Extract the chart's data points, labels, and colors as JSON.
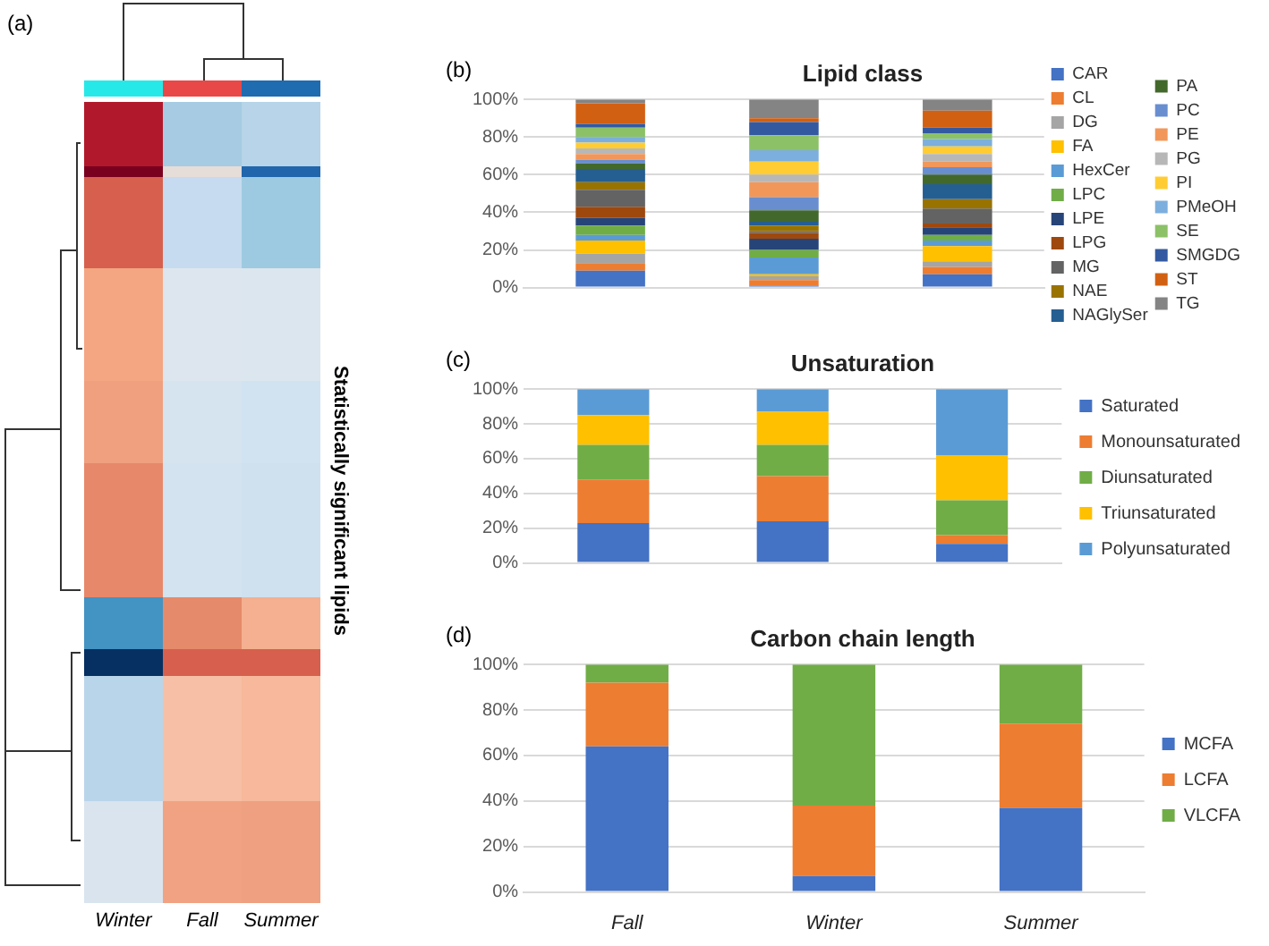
{
  "chart_data": [
    {
      "type": "other",
      "categories": [
        "Winter",
        "Fall",
        "Summer"
      ],
      "ylabel": "Statistically significant lipids",
      "annotations": [
        "(a)"
      ]
    },
    {
      "type": "bar",
      "title": "Lipid class",
      "annotations": [
        "(b)"
      ],
      "stacked": true,
      "categories": [
        null,
        null,
        null
      ],
      "ylim": [
        0,
        100
      ],
      "yticks": [
        {
          "value": 0,
          "label": "0%"
        },
        {
          "value": 20,
          "label": "20%"
        },
        {
          "value": 40,
          "label": "40%"
        },
        {
          "value": 60,
          "label": "60%"
        },
        {
          "value": 80,
          "label": "80%"
        },
        {
          "value": 100,
          "label": "100%"
        }
      ],
      "grid": "y",
      "legend": "right",
      "series": [
        {
          "name": "CAR",
          "color": "#4472c4",
          "values": [
            9,
            1,
            7
          ]
        },
        {
          "name": "CL",
          "color": "#ed7d31",
          "values": [
            4,
            3,
            4
          ]
        },
        {
          "name": "DG",
          "color": "#a5a5a5",
          "values": [
            5,
            2,
            3
          ]
        },
        {
          "name": "FA",
          "color": "#ffc000",
          "values": [
            7,
            1,
            8
          ]
        },
        {
          "name": "HexCer",
          "color": "#5b9bd5",
          "values": [
            3,
            9,
            3
          ]
        },
        {
          "name": "LPC",
          "color": "#70ad47",
          "values": [
            5,
            4,
            3
          ]
        },
        {
          "name": "LPE",
          "color": "#264478",
          "values": [
            4,
            6,
            4
          ]
        },
        {
          "name": "LPG",
          "color": "#9e480e",
          "values": [
            6,
            3,
            2
          ]
        },
        {
          "name": "MG",
          "color": "#636363",
          "values": [
            9,
            1,
            8
          ]
        },
        {
          "name": "NAE",
          "color": "#997300",
          "values": [
            4,
            3,
            5
          ]
        },
        {
          "name": "NAGlySer",
          "color": "#255e91",
          "values": [
            7,
            2,
            8
          ]
        },
        {
          "name": "PA",
          "color": "#43682b",
          "values": [
            3,
            6,
            5
          ]
        },
        {
          "name": "PC",
          "color": "#698ed0",
          "values": [
            2,
            7,
            4
          ]
        },
        {
          "name": "PE",
          "color": "#f1975a",
          "values": [
            3,
            8,
            3
          ]
        },
        {
          "name": "PG",
          "color": "#b7b7b7",
          "values": [
            3,
            4,
            4
          ]
        },
        {
          "name": "PI",
          "color": "#ffcd33",
          "values": [
            3,
            7,
            4
          ]
        },
        {
          "name": "PMeOH",
          "color": "#7cafdd",
          "values": [
            3,
            6,
            4
          ]
        },
        {
          "name": "SE",
          "color": "#8cc168",
          "values": [
            5,
            8,
            3
          ]
        },
        {
          "name": "SMGDG",
          "color": "#335aa1",
          "values": [
            2,
            7,
            3
          ]
        },
        {
          "name": "ST",
          "color": "#d26012",
          "values": [
            11,
            2,
            9
          ]
        },
        {
          "name": "TG",
          "color": "#848484",
          "values": [
            2,
            10,
            6
          ]
        }
      ]
    },
    {
      "type": "bar",
      "title": "Unsaturation",
      "annotations": [
        "(c)"
      ],
      "stacked": true,
      "categories": [
        null,
        null,
        null
      ],
      "ylim": [
        0,
        100
      ],
      "yticks": [
        {
          "value": 0,
          "label": "0%"
        },
        {
          "value": 20,
          "label": "20%"
        },
        {
          "value": 40,
          "label": "40%"
        },
        {
          "value": 60,
          "label": "60%"
        },
        {
          "value": 80,
          "label": "80%"
        },
        {
          "value": 100,
          "label": "100%"
        }
      ],
      "grid": "y",
      "legend": "right",
      "series": [
        {
          "name": "Saturated",
          "color": "#4472c4",
          "values": [
            23,
            24,
            11
          ]
        },
        {
          "name": "Monounsaturated",
          "color": "#ed7d31",
          "values": [
            25,
            26,
            5
          ]
        },
        {
          "name": "Diunsaturated",
          "color": "#70ad47",
          "values": [
            20,
            18,
            20
          ]
        },
        {
          "name": "Triunsaturated",
          "color": "#ffc000",
          "values": [
            17,
            19,
            26
          ]
        },
        {
          "name": "Polyunsaturated",
          "color": "#5b9bd5",
          "values": [
            15,
            13,
            38
          ]
        }
      ]
    },
    {
      "type": "bar",
      "title": "Carbon chain length",
      "annotations": [
        "(d)"
      ],
      "stacked": true,
      "categories": [
        "Fall",
        "Winter",
        "Summer"
      ],
      "ylim": [
        0,
        100
      ],
      "yticks": [
        {
          "value": 0,
          "label": "0%"
        },
        {
          "value": 20,
          "label": "20%"
        },
        {
          "value": 40,
          "label": "40%"
        },
        {
          "value": 60,
          "label": "60%"
        },
        {
          "value": 80,
          "label": "80%"
        },
        {
          "value": 100,
          "label": "100%"
        }
      ],
      "grid": "y",
      "legend": "right",
      "series": [
        {
          "name": "MCFA",
          "color": "#4472c4",
          "values": [
            64,
            7,
            37
          ]
        },
        {
          "name": "LCFA",
          "color": "#ed7d31",
          "values": [
            28,
            31,
            37
          ]
        },
        {
          "name": "VLCFA",
          "color": "#70ad47",
          "values": [
            8,
            62,
            26
          ]
        }
      ]
    }
  ]
}
